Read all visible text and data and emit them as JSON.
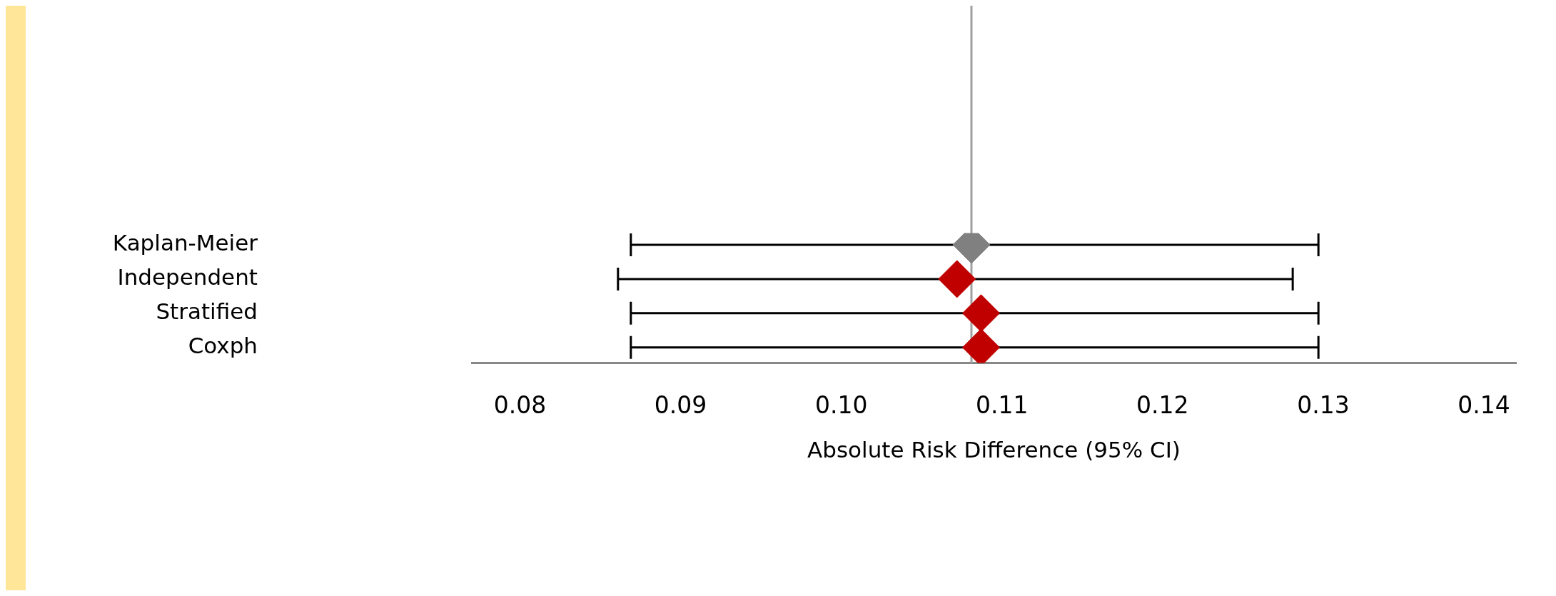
{
  "chart_data": {
    "type": "scatter",
    "orientation": "horizontal",
    "xlabel": "Absolute Risk Difference (95% CI)",
    "categories": [
      "Kaplan-Meier",
      "Independent",
      "Stratified",
      "Coxph"
    ],
    "values": [
      0.1081,
      0.1072,
      0.1087,
      0.1087
    ],
    "errors": [
      [
        0.0869,
        0.1297
      ],
      [
        0.0861,
        0.1281
      ],
      [
        0.0869,
        0.1297
      ],
      [
        0.0869,
        0.1297
      ]
    ],
    "colors": [
      "#808080",
      "#c00000",
      "#c00000",
      "#c00000"
    ],
    "marker": "diamond",
    "xlim": [
      0.077,
      0.142
    ],
    "xticks": [
      {
        "value": 0.08,
        "label": "0.08"
      },
      {
        "value": 0.09,
        "label": "0.09"
      },
      {
        "value": 0.1,
        "label": "0.10"
      },
      {
        "value": 0.11,
        "label": "0.11"
      },
      {
        "value": 0.12,
        "label": "0.12"
      },
      {
        "value": 0.13,
        "label": "0.13"
      },
      {
        "value": 0.14,
        "label": "0.14"
      }
    ],
    "ref_lines": [
      {
        "axis": "x",
        "value": 0.1081,
        "color": "#a0a0a0"
      }
    ],
    "grid": false,
    "legend": false
  }
}
